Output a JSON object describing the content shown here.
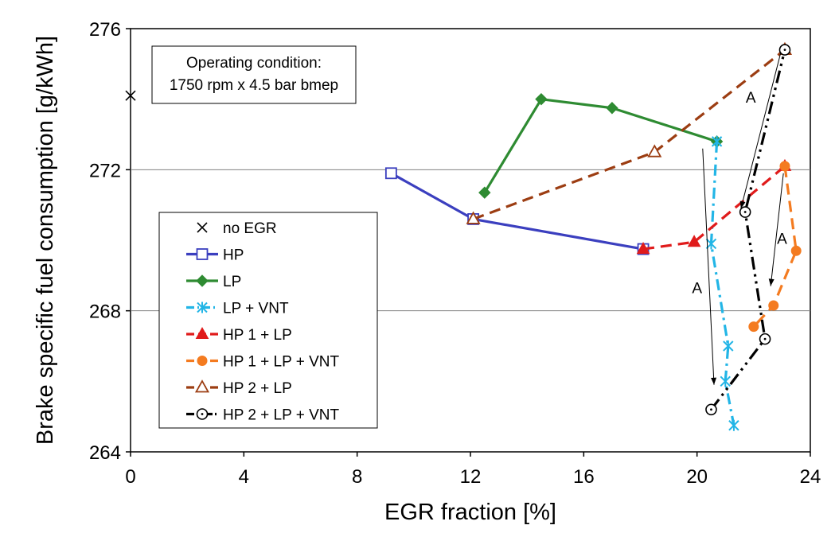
{
  "chart_data": {
    "type": "line",
    "xlabel": "EGR fraction [%]",
    "ylabel": "Brake specific fuel consumption [g/kWh]",
    "xlim": [
      0,
      24
    ],
    "ylim": [
      264,
      276
    ],
    "x_ticks": [
      "0",
      "4",
      "8",
      "12",
      "16",
      "20",
      "24"
    ],
    "y_ticks": [
      "264",
      "268",
      "272",
      "276"
    ],
    "grid": "horizontal lines at 268 and 272",
    "legend_position": "left-middle",
    "condition_box": {
      "line1": "Operating condition:",
      "line2": "1750 rpm x 4.5 bar bmep"
    },
    "annotations": [
      {
        "text": "A",
        "x": 21.9,
        "y": 273.9
      },
      {
        "text": "A",
        "x": 23.0,
        "y": 269.9
      },
      {
        "text": "A",
        "x": 20.0,
        "y": 268.5
      }
    ],
    "arrows": [
      {
        "from": [
          22.95,
          275.3
        ],
        "to": [
          21.55,
          270.9
        ]
      },
      {
        "from": [
          23.05,
          271.9
        ],
        "to": [
          22.6,
          268.7
        ]
      },
      {
        "from": [
          20.2,
          272.6
        ],
        "to": [
          20.6,
          265.9
        ]
      }
    ],
    "series": [
      {
        "name": "no EGR",
        "color": "#000000",
        "marker": "x",
        "dash": "none",
        "x": [
          0
        ],
        "y": [
          274.1
        ]
      },
      {
        "name": "HP",
        "color": "#3b3fbf",
        "marker": "square-open",
        "dash": "solid",
        "x": [
          9.2,
          12.1,
          18.1
        ],
        "y": [
          271.9,
          270.6,
          269.75
        ]
      },
      {
        "name": "LP",
        "color": "#2e8b32",
        "marker": "diamond",
        "dash": "solid",
        "x": [
          12.5,
          14.5,
          17.0,
          20.7
        ],
        "y": [
          271.35,
          274.0,
          273.75,
          272.8
        ]
      },
      {
        "name": "LP + VNT",
        "color": "#22b5e6",
        "marker": "asterisk",
        "dash": "dashdot",
        "x": [
          20.7,
          20.5,
          21.1,
          21.0,
          21.3
        ],
        "y": [
          272.8,
          269.9,
          267.0,
          266.0,
          264.75
        ]
      },
      {
        "name": "HP 1 + LP",
        "color": "#e01b1b",
        "marker": "triangle",
        "dash": "dash",
        "x": [
          18.1,
          19.9,
          23.1
        ],
        "y": [
          269.75,
          269.95,
          272.1
        ]
      },
      {
        "name": "HP 1 + LP + VNT",
        "color": "#f47b20",
        "marker": "circle",
        "dash": "dash",
        "x": [
          23.1,
          23.5,
          22.7,
          22.0
        ],
        "y": [
          272.1,
          269.7,
          268.15,
          267.55
        ]
      },
      {
        "name": "HP 2 + LP",
        "color": "#9c3d12",
        "marker": "triangle-open",
        "dash": "dash",
        "x": [
          12.1,
          18.5,
          23.1
        ],
        "y": [
          270.6,
          272.5,
          275.4
        ]
      },
      {
        "name": "HP 2 + LP + VNT",
        "color": "#000000",
        "marker": "circle-open",
        "dash": "dashdotdot",
        "x": [
          20.5,
          22.4,
          21.7,
          23.1
        ],
        "y": [
          265.2,
          267.2,
          270.8,
          275.4
        ]
      }
    ]
  }
}
